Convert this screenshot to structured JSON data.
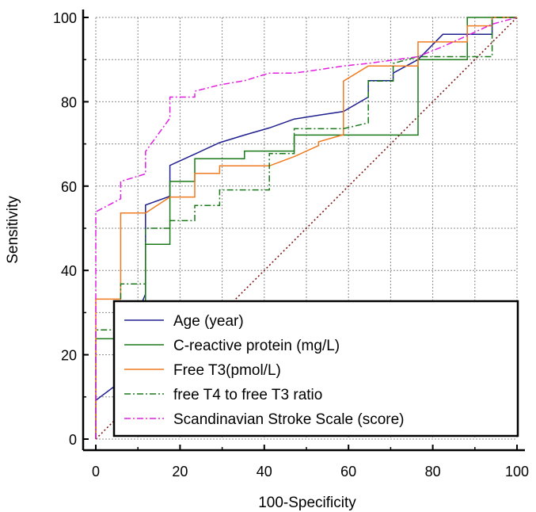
{
  "chart_data": {
    "type": "line",
    "title": "",
    "xlabel": "100-Specificity",
    "ylabel": "Sensitivity",
    "xlim": [
      0,
      100
    ],
    "ylim": [
      0,
      100
    ],
    "xticks": [
      0,
      20,
      40,
      60,
      80,
      100
    ],
    "yticks": [
      0,
      20,
      40,
      60,
      80,
      100
    ],
    "grid": true,
    "legend_position": "bottom-right",
    "series": [
      {
        "name": "Age (year)",
        "color": "#1f1f8f",
        "dash": "solid",
        "x": [
          0,
          0,
          5.9,
          5.9,
          11.8,
          11.8,
          17.6,
          17.6,
          23.5,
          29.4,
          35.3,
          41.2,
          47.1,
          52.9,
          58.8,
          64.7,
          64.7,
          70.6,
          70.6,
          76.5,
          76.5,
          82.4,
          88.2,
          88.2,
          94.1,
          94.1,
          100
        ],
        "y": [
          0,
          9.2,
          13.6,
          20.5,
          34.4,
          55.5,
          57.6,
          64.9,
          67.6,
          70.3,
          72.1,
          73.8,
          75.9,
          76.8,
          77.7,
          81.1,
          85.0,
          85.0,
          86.8,
          90.0,
          90.0,
          96.0,
          96.0,
          96.0,
          96.0,
          100,
          100
        ]
      },
      {
        "name": "C-reactive protein (mg/L)",
        "color": "#1a7a1a",
        "dash": "solid",
        "x": [
          0,
          0,
          5.9,
          5.9,
          11.8,
          11.8,
          17.6,
          17.6,
          23.5,
          23.5,
          29.4,
          35.3,
          35.3,
          41.2,
          47.1,
          47.1,
          58.8,
          64.7,
          76.5,
          76.5,
          82.4,
          88.2,
          88.2,
          100
        ],
        "y": [
          0,
          23.8,
          23.8,
          30.2,
          30.2,
          46.2,
          46.2,
          61.1,
          61.1,
          66.5,
          66.5,
          66.5,
          68.3,
          68.3,
          68.3,
          72.1,
          72.1,
          72.1,
          72.1,
          90.0,
          90.0,
          90.0,
          100,
          100
        ]
      },
      {
        "name": "Free T3(pmol/L)",
        "color": "#ef7a1f",
        "dash": "solid",
        "x": [
          0,
          0,
          5.9,
          5.9,
          11.8,
          11.8,
          17.6,
          17.6,
          23.5,
          23.5,
          29.4,
          29.4,
          35.3,
          41.2,
          47.1,
          52.9,
          52.9,
          58.8,
          58.8,
          64.7,
          64.7,
          76.5,
          76.5,
          82.4,
          88.2,
          88.2,
          94.1,
          94.1,
          100
        ],
        "y": [
          0,
          33.2,
          33.2,
          53.6,
          53.6,
          53.6,
          57.4,
          57.4,
          57.4,
          63.0,
          63.0,
          64.8,
          64.8,
          64.8,
          67.0,
          69.6,
          70.5,
          72.2,
          84.9,
          88.5,
          88.5,
          88.5,
          94.2,
          94.2,
          94.2,
          98.0,
          98.0,
          100,
          100
        ]
      },
      {
        "name": "free T4 to free T3 ratio",
        "color": "#1a7a1a",
        "dash": "8,3,2,3",
        "x": [
          0,
          0,
          5.9,
          5.9,
          11.8,
          11.8,
          17.6,
          17.6,
          23.5,
          23.5,
          29.4,
          29.4,
          41.2,
          41.2,
          47.1,
          47.1,
          58.8,
          64.7,
          64.7,
          70.6,
          70.6,
          76.5,
          88.2,
          88.2,
          94.1,
          94.1,
          100
        ],
        "y": [
          0,
          25.9,
          25.9,
          36.8,
          36.8,
          50.0,
          50.0,
          51.8,
          51.8,
          55.4,
          55.4,
          59.1,
          59.1,
          67.7,
          67.7,
          73.6,
          73.6,
          75.0,
          84.9,
          84.9,
          89.1,
          90.7,
          90.7,
          90.7,
          90.7,
          100,
          100
        ]
      },
      {
        "name": "Scandinavian Stroke Scale (score)",
        "color": "#e020e0",
        "dash": "8,3,2,3",
        "x": [
          0,
          0,
          5.9,
          5.9,
          11.8,
          11.8,
          17.6,
          17.6,
          23.5,
          23.5,
          29.4,
          35.3,
          41.2,
          47.1,
          52.9,
          58.8,
          64.7,
          70.6,
          76.5,
          82.4,
          88.2,
          94.1,
          100
        ],
        "y": [
          0,
          53.9,
          57.0,
          61.1,
          62.9,
          68.2,
          76.1,
          81.1,
          81.1,
          82.5,
          84.0,
          85.0,
          86.8,
          86.8,
          87.6,
          88.5,
          89.1,
          89.9,
          90.7,
          93.1,
          95.7,
          98.4,
          100
        ]
      },
      {
        "name": "",
        "color": "#7a0a0a",
        "dash": "2,3",
        "x": [
          0,
          100
        ],
        "y": [
          0,
          100
        ]
      }
    ]
  }
}
